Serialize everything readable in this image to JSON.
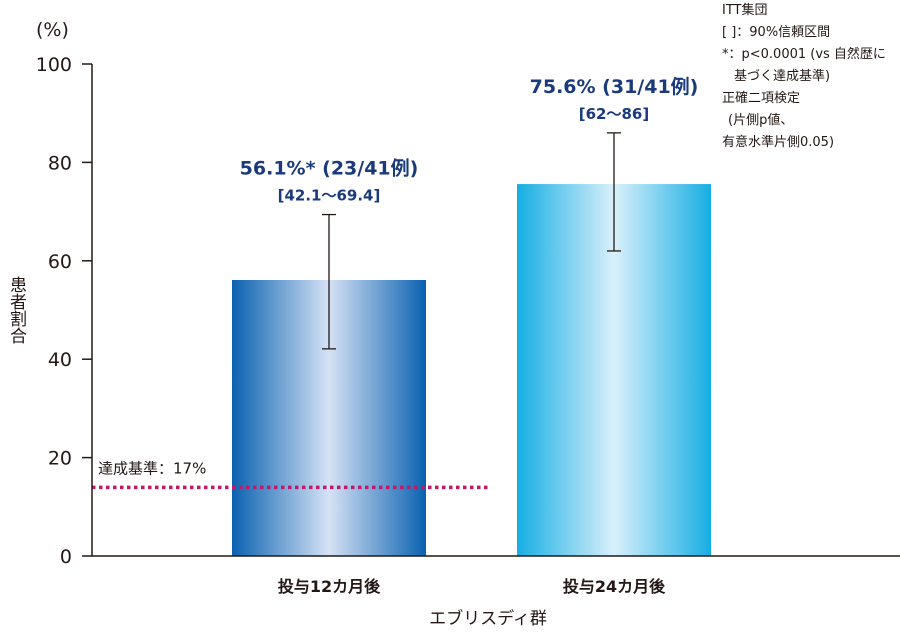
{
  "chart_data": {
    "type": "bar",
    "categories": [
      "投与12カ月後",
      "投与24カ月後"
    ],
    "values": [
      56.1,
      75.6
    ],
    "ci_low": [
      42.1,
      62
    ],
    "ci_high": [
      69.4,
      86
    ],
    "bar_labels": [
      "56.1%* (23/41例)",
      "75.6% (31/41例)"
    ],
    "ci_labels": [
      "[42.1〜69.4]",
      "[62〜86]"
    ],
    "ylim": [
      0,
      100
    ],
    "yticks": [
      "0",
      "20",
      "40",
      "60",
      "80",
      "100"
    ],
    "yunit": "(%)",
    "ylabel": "患者割合",
    "xlabel": "エブリスディ群",
    "threshold": {
      "value": 17,
      "label": "達成基準：17%",
      "color": "#c0196b"
    },
    "colors": {
      "bar1_edge": "#0a62b0",
      "bar1_mid": "#d6e2f5",
      "bar2_edge": "#16aee3",
      "bar2_mid": "#d9f0fb",
      "axis": "#231815"
    },
    "grid": false,
    "legend": "none"
  },
  "notes": [
    "ITT集団",
    "[ ]：90%信頼区間",
    "*：p<0.0001 (vs 自然歴に",
    "基づく達成基準)",
    "正確二項検定",
    "(片側p値、",
    "有意水準片側0.05)"
  ]
}
